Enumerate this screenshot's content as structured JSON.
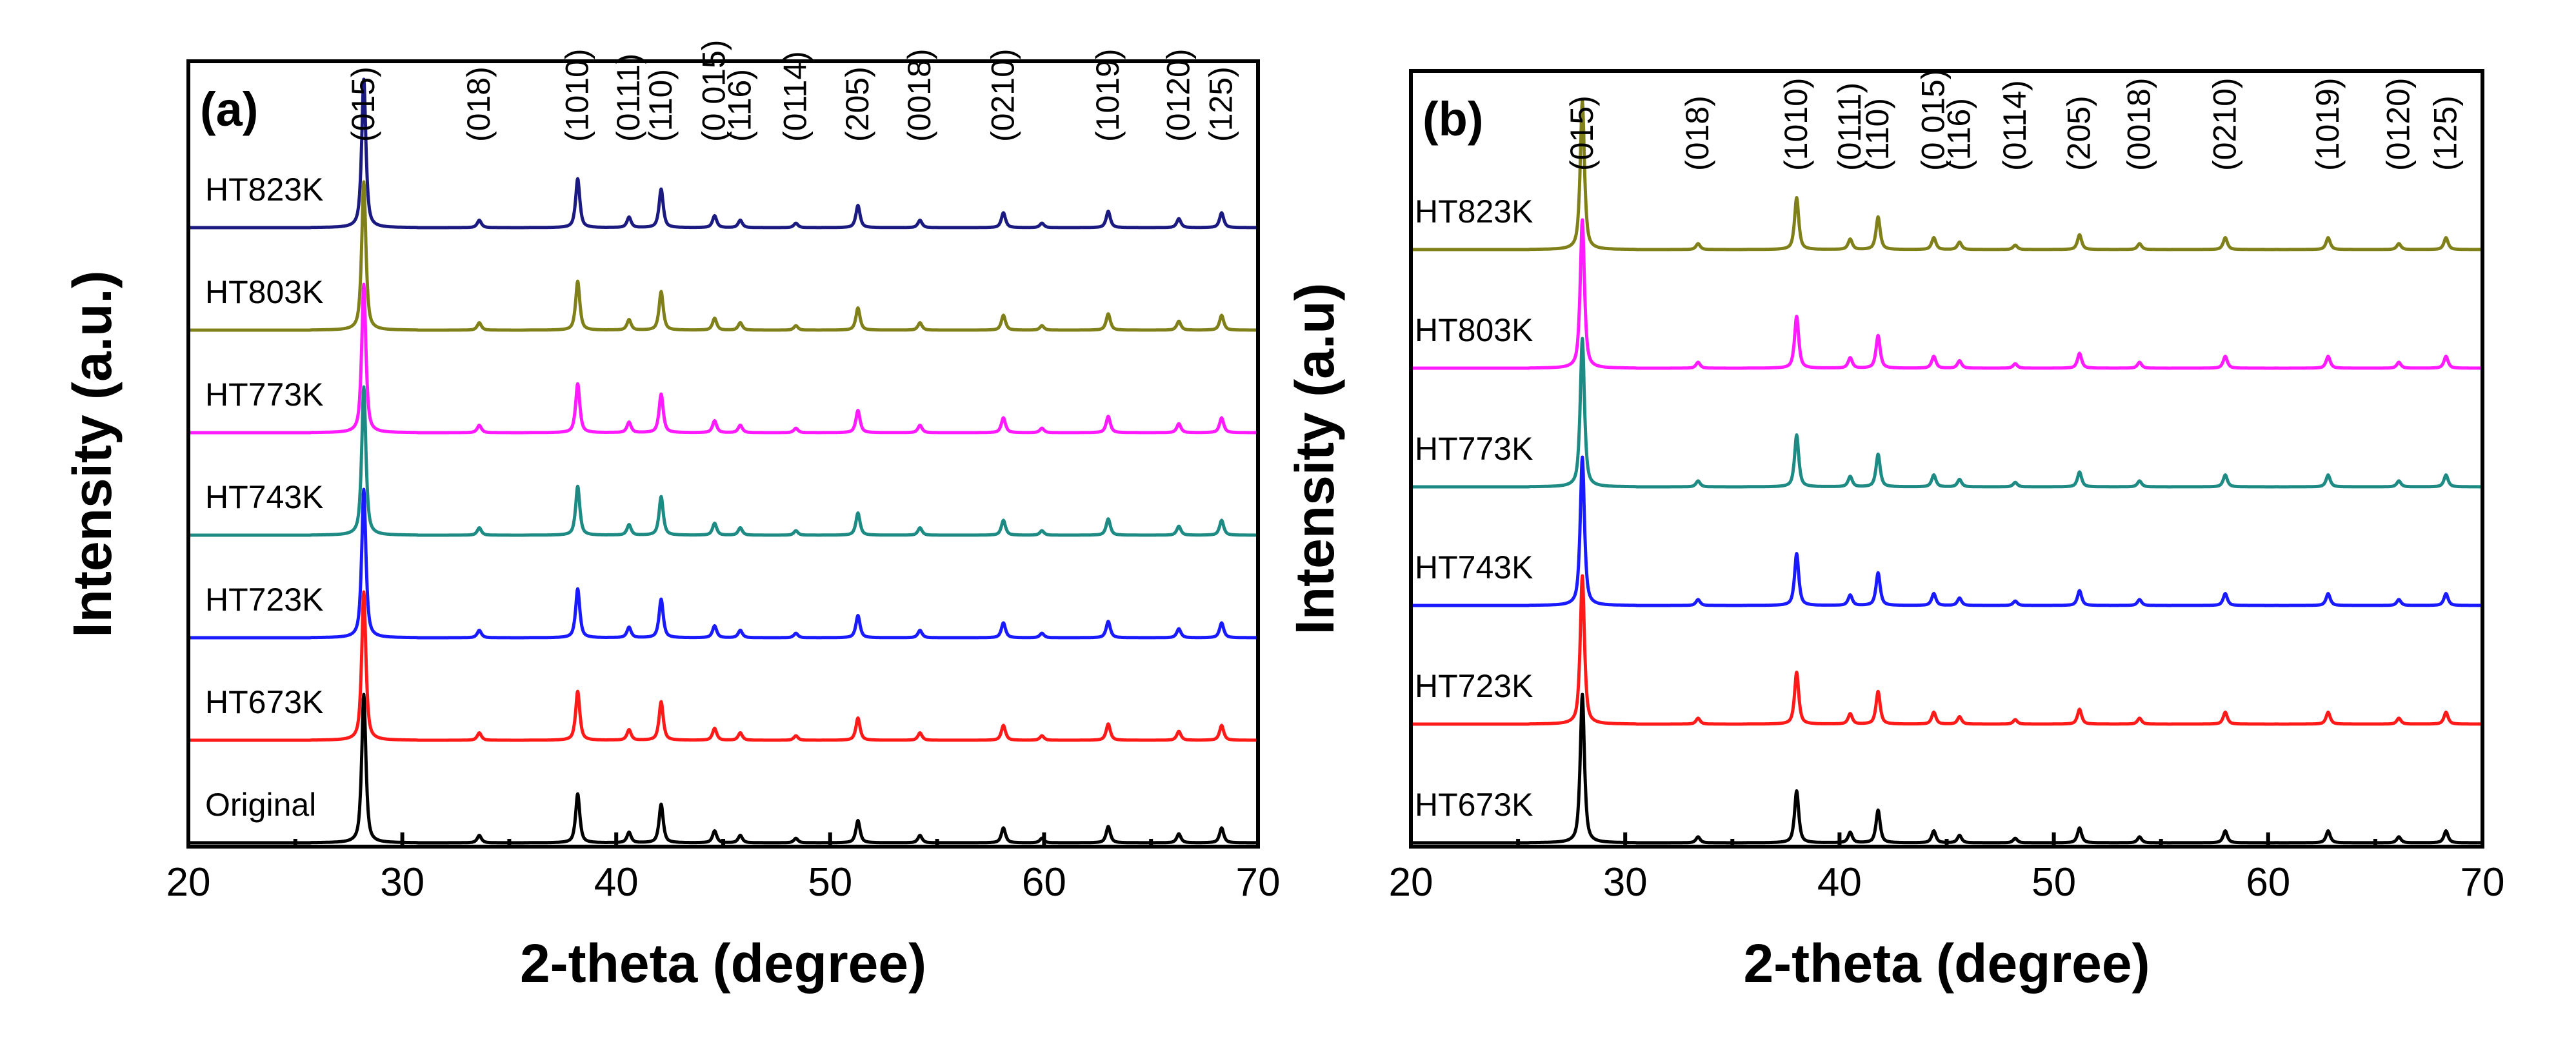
{
  "chart_data": [
    {
      "type": "line",
      "panel_label": "(a)",
      "xlabel": "2-theta (degree)",
      "ylabel": "Intensity (a.u.)",
      "xlim": [
        20,
        70
      ],
      "xticks": [
        20,
        30,
        40,
        50,
        60,
        70
      ],
      "xtick_labels": [
        "20",
        "30",
        "40",
        "50",
        "60",
        "70"
      ],
      "y_ticks_shown": false,
      "peak_positions": [
        28.2,
        33.6,
        38.2,
        40.6,
        42.1,
        44.6,
        45.8,
        48.4,
        51.3,
        54.2,
        58.1,
        59.9,
        63.0,
        66.3,
        68.3
      ],
      "peak_heights": [
        1.0,
        0.05,
        0.33,
        0.07,
        0.26,
        0.08,
        0.05,
        0.03,
        0.15,
        0.05,
        0.1,
        0.03,
        0.11,
        0.06,
        0.1
      ],
      "hkl_labels": [
        {
          "label": "(015)",
          "x": 28.2
        },
        {
          "label": "(018)",
          "x": 33.6
        },
        {
          "label": "(1010)",
          "x": 38.2
        },
        {
          "label": "(0111)",
          "x": 40.6
        },
        {
          "label": "(110)",
          "x": 42.1
        },
        {
          "label": "(0 015)",
          "x": 44.6
        },
        {
          "label": "(116)",
          "x": 45.8
        },
        {
          "label": "(0114)",
          "x": 48.4
        },
        {
          "label": "(205)",
          "x": 51.3
        },
        {
          "label": "(0018)",
          "x": 54.2
        },
        {
          "label": "(0210)",
          "x": 58.1
        },
        {
          "label": "(1019)",
          "x": 63.0
        },
        {
          "label": "(0120)",
          "x": 66.3
        },
        {
          "label": "(125)",
          "x": 68.3
        }
      ],
      "series": [
        {
          "name": "Original",
          "color": "#000000"
        },
        {
          "name": "HT673K",
          "color": "#ff1a1a"
        },
        {
          "name": "HT723K",
          "color": "#1a1aff"
        },
        {
          "name": "HT743K",
          "color": "#1e8a84"
        },
        {
          "name": "HT773K",
          "color": "#ff1aff"
        },
        {
          "name": "HT803K",
          "color": "#80801a"
        },
        {
          "name": "HT823K",
          "color": "#1a1a80"
        }
      ]
    },
    {
      "type": "line",
      "panel_label": "(b)",
      "xlabel": "2-theta (degree)",
      "ylabel": "Intensity (a.u)",
      "xlim": [
        20,
        70
      ],
      "xticks": [
        20,
        30,
        40,
        50,
        60,
        70
      ],
      "xtick_labels": [
        "20",
        "30",
        "40",
        "50",
        "60",
        "70"
      ],
      "y_ticks_shown": false,
      "peak_positions": [
        28.0,
        33.4,
        38.0,
        40.5,
        41.8,
        44.4,
        45.6,
        48.2,
        51.2,
        54.0,
        58.0,
        62.8,
        66.1,
        68.3
      ],
      "peak_heights": [
        1.0,
        0.04,
        0.35,
        0.07,
        0.22,
        0.08,
        0.05,
        0.03,
        0.1,
        0.04,
        0.08,
        0.08,
        0.04,
        0.08
      ],
      "hkl_labels": [
        {
          "label": "(015)",
          "x": 28.0
        },
        {
          "label": "(018)",
          "x": 33.4
        },
        {
          "label": "(1010)",
          "x": 38.0
        },
        {
          "label": "(0111)",
          "x": 40.5
        },
        {
          "label": "(110)",
          "x": 41.8
        },
        {
          "label": "(0 015)",
          "x": 44.4
        },
        {
          "label": "(116)",
          "x": 45.6
        },
        {
          "label": "(0114)",
          "x": 48.2
        },
        {
          "label": "(205)",
          "x": 51.2
        },
        {
          "label": "(0018)",
          "x": 54.0
        },
        {
          "label": "(0210)",
          "x": 58.0
        },
        {
          "label": "(1019)",
          "x": 62.8
        },
        {
          "label": "(0120)",
          "x": 66.1
        },
        {
          "label": "(125)",
          "x": 68.3
        }
      ],
      "series": [
        {
          "name": "HT673K",
          "color": "#000000"
        },
        {
          "name": "HT723K",
          "color": "#ff1a1a"
        },
        {
          "name": "HT743K",
          "color": "#1a1aff"
        },
        {
          "name": "HT773K",
          "color": "#1e8a84"
        },
        {
          "name": "HT803K",
          "color": "#ff1aff"
        },
        {
          "name": "HT823K",
          "color": "#80801a"
        }
      ]
    }
  ]
}
